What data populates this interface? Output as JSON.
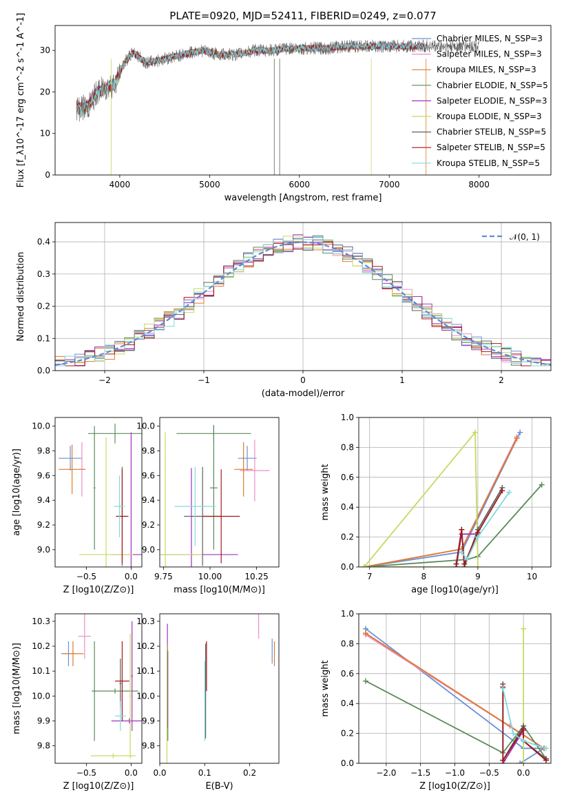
{
  "title": "PLATE=0920, MJD=52411, FIBERID=0249, z=0.077",
  "colors": {
    "chab_miles": "#6a8fd8",
    "salp_miles": "#e98fc6",
    "krou_miles": "#e07a2a",
    "chab_elodie": "#5a8a5a",
    "salp_elodie": "#a030c0",
    "krou_elodie": "#c8d860",
    "chab_stelib": "#606060",
    "salp_stelib": "#a01818",
    "krou_stelib": "#80d8e0"
  },
  "chart_data": [
    {
      "type": "line",
      "xlabel": "wavelength [Angstrom, rest frame]",
      "ylabel": "Flux [f_λ10^-17 erg cm^-2 s^-1 A^-1]",
      "xlim": [
        3280,
        8800
      ],
      "ylim": [
        0,
        36
      ],
      "xticks": [
        "4000",
        "5000",
        "6000",
        "7000",
        "8000"
      ],
      "yticks": [
        "0",
        "10",
        "20",
        "30"
      ],
      "x": [
        3550,
        3650,
        3750,
        3850,
        3950,
        4050,
        4150,
        4300,
        4500,
        4700,
        4900,
        5100,
        5300,
        5500,
        5700,
        5900,
        6100,
        6300,
        6500,
        6700,
        6900,
        7100,
        7300
      ],
      "series": [
        {
          "name": "Chabrier MILES, N_SSP=3",
          "color_key": "chab_miles",
          "values": [
            16,
            16.5,
            20,
            21,
            22,
            27,
            29.5,
            27,
            28,
            29,
            30,
            29,
            29,
            30,
            30,
            30.5,
            30.5,
            30.5,
            31,
            31,
            31,
            31,
            31
          ]
        },
        {
          "name": "Salpeter MILES, N_SSP=3",
          "color_key": "salp_miles",
          "values": [
            16,
            16.5,
            20,
            21,
            22,
            27,
            29.5,
            27,
            28,
            29,
            30,
            29,
            29,
            30,
            30,
            30.5,
            30.5,
            30.5,
            31,
            31,
            31,
            31,
            31
          ]
        },
        {
          "name": "Kroupa MILES, N_SSP=3",
          "color_key": "krou_miles",
          "values": [
            16,
            16.5,
            20,
            21,
            22,
            27,
            29.5,
            27,
            28,
            29,
            30,
            29,
            29,
            30,
            30,
            30.5,
            30.5,
            30.5,
            31,
            31,
            31,
            31,
            31
          ]
        },
        {
          "name": "Chabrier ELODIE, N_SSP=5",
          "color_key": "chab_elodie",
          "values": [
            16,
            16.5,
            20,
            21,
            22,
            27,
            29.5,
            27,
            28,
            29,
            30,
            29,
            29,
            30,
            30,
            30.5,
            30.5,
            30.5,
            31,
            31,
            31,
            31,
            31
          ]
        },
        {
          "name": "Salpeter ELODIE, N_SSP=3",
          "color_key": "salp_elodie",
          "values": [
            16,
            16.5,
            20,
            21,
            22,
            27,
            29.5,
            27,
            28,
            29,
            30,
            29,
            29,
            30,
            30,
            30.5,
            30.5,
            30.5,
            31,
            31,
            31,
            31,
            31
          ]
        },
        {
          "name": "Kroupa ELODIE, N_SSP=3",
          "color_key": "krou_elodie",
          "values": [
            16,
            16.5,
            20,
            21,
            22,
            27,
            29.5,
            27,
            28,
            29,
            30,
            29,
            29,
            30,
            30,
            30.5,
            30.5,
            30.5,
            31,
            31,
            31,
            31,
            31
          ]
        },
        {
          "name": "Chabrier STELIB, N_SSP=5",
          "color_key": "chab_stelib",
          "values": [
            16,
            16.5,
            20,
            21,
            22,
            27,
            29.5,
            27,
            28,
            29,
            30,
            29,
            29,
            30,
            30,
            30.5,
            30.5,
            30.5,
            31,
            31,
            31,
            31,
            31
          ]
        },
        {
          "name": "Salpeter STELIB, N_SSP=5",
          "color_key": "salp_stelib",
          "values": [
            16,
            16.5,
            20,
            21,
            22,
            27,
            29.5,
            27,
            28,
            29,
            30,
            29,
            29,
            30,
            30,
            30.5,
            30.5,
            30.5,
            31,
            31,
            31,
            31,
            31
          ]
        },
        {
          "name": "Kroupa STELIB, N_SSP=5",
          "color_key": "krou_stelib",
          "values": [
            16,
            16.5,
            20,
            21,
            22,
            27,
            29.5,
            27,
            28,
            29,
            30,
            29,
            29,
            30,
            30,
            30.5,
            30.5,
            30.5,
            31,
            31,
            31,
            31,
            31
          ]
        }
      ],
      "legend": "right"
    },
    {
      "type": "line",
      "xlabel": "(data-model)/error",
      "ylabel": "Normed distribution",
      "xlim": [
        -2.5,
        2.5
      ],
      "ylim": [
        0,
        0.46
      ],
      "xticks": [
        "−2",
        "−1",
        "0",
        "1",
        "2"
      ],
      "yticks": [
        "0.0",
        "0.1",
        "0.2",
        "0.3",
        "0.4"
      ],
      "grid": true,
      "reference": {
        "name": "𝒩(0, 1)",
        "dist": "normal",
        "mean": 0,
        "sigma": 1
      },
      "series_style": "step histograms, one per model",
      "legend": "top-right"
    },
    {
      "type": "scatter",
      "xlabel": "Z [log10(Z/Z⊙)]",
      "ylabel": "age  [log10(age/yr)]",
      "xlim": [
        -0.85,
        0.12
      ],
      "ylim": [
        8.86,
        10.07
      ],
      "xticks": [
        "−0.5",
        "0.0"
      ],
      "yticks": [
        "9.0",
        "9.2",
        "9.4",
        "9.6",
        "9.8",
        "10.0"
      ],
      "points": [
        {
          "color_key": "chab_miles",
          "x": -0.68,
          "y": 9.74,
          "ex": 0.13,
          "ey": 0.1
        },
        {
          "color_key": "salp_miles",
          "x": -0.55,
          "y": 9.65,
          "ex": 0.03,
          "ey": 0.22
        },
        {
          "color_key": "krou_miles",
          "x": -0.66,
          "y": 9.65,
          "ex": 0.15,
          "ey": 0.2
        },
        {
          "color_key": "chab_elodie",
          "x": -0.18,
          "y": 9.94,
          "ex": 0.3,
          "ey": 0.08
        },
        {
          "color_key": "chab_elodie",
          "x": -0.41,
          "y": 9.5,
          "ex": 0.01,
          "ey": 0.5
        },
        {
          "color_key": "salp_elodie",
          "x": 0.0,
          "y": 8.96,
          "ex": 0.2,
          "ey": 0.99
        },
        {
          "color_key": "krou_elodie",
          "x": -0.28,
          "y": 8.96,
          "ex": 0.3,
          "ey": 0.95
        },
        {
          "color_key": "chab_stelib",
          "x": -0.1,
          "y": 9.27,
          "ex": 0.04,
          "ey": 0.4
        },
        {
          "color_key": "salp_stelib",
          "x": -0.1,
          "y": 9.27,
          "ex": 0.07,
          "ey": 0.38
        },
        {
          "color_key": "krou_stelib",
          "x": -0.13,
          "y": 9.35,
          "ex": 0.06,
          "ey": 0.25
        }
      ]
    },
    {
      "type": "scatter",
      "xlabel": "mass [log10(M/M⊙)]",
      "ylabel": "",
      "xlim": [
        9.73,
        10.37
      ],
      "ylim": [
        8.86,
        10.07
      ],
      "xticks": [
        "9.75",
        "10.00",
        "10.25"
      ],
      "yticks": [
        "9.0",
        "9.2",
        "9.4",
        "9.6",
        "9.8",
        "10.0"
      ],
      "points": [
        {
          "color_key": "chab_miles",
          "x": 10.2,
          "y": 9.74,
          "ex": 0.05,
          "ey": 0.1
        },
        {
          "color_key": "salp_miles",
          "x": 10.24,
          "y": 9.64,
          "ex": 0.08,
          "ey": 0.25
        },
        {
          "color_key": "krou_miles",
          "x": 10.18,
          "y": 9.65,
          "ex": 0.05,
          "ey": 0.22
        },
        {
          "color_key": "chab_elodie",
          "x": 10.02,
          "y": 9.94,
          "ex": 0.2,
          "ey": 0.07
        },
        {
          "color_key": "chab_elodie",
          "x": 10.02,
          "y": 9.5,
          "ex": 0.02,
          "ey": 0.5
        },
        {
          "color_key": "salp_elodie",
          "x": 9.9,
          "y": 8.96,
          "ex": 0.25,
          "ey": 0.7
        },
        {
          "color_key": "krou_elodie",
          "x": 9.76,
          "y": 8.96,
          "ex": 0.2,
          "ey": 0.99
        },
        {
          "color_key": "chab_stelib",
          "x": 9.96,
          "y": 9.27,
          "ex": 0.1,
          "ey": 0.4
        },
        {
          "color_key": "salp_stelib",
          "x": 10.06,
          "y": 9.27,
          "ex": 0.1,
          "ey": 0.38
        },
        {
          "color_key": "krou_stelib",
          "x": 9.92,
          "y": 9.35,
          "ex": 0.11,
          "ey": 0.32
        }
      ]
    },
    {
      "type": "line",
      "xlabel": "age  [log10(age/yr)]",
      "ylabel": "mass weight",
      "xlim": [
        6.8,
        10.35
      ],
      "ylim": [
        0,
        1.0
      ],
      "xticks": [
        "7",
        "8",
        "9",
        "10"
      ],
      "yticks": [
        "0.0",
        "0.2",
        "0.4",
        "0.6",
        "0.8",
        "1.0"
      ],
      "grid": true,
      "series": [
        {
          "color_key": "chab_miles",
          "x": [
            6.9,
            8.7,
            9.78
          ],
          "y": [
            0.0,
            0.1,
            0.9
          ]
        },
        {
          "color_key": "salp_miles",
          "x": [
            6.9,
            8.7,
            9.72
          ],
          "y": [
            0.0,
            0.12,
            0.87
          ]
        },
        {
          "color_key": "krou_miles",
          "x": [
            6.9,
            8.7,
            9.72
          ],
          "y": [
            0.0,
            0.12,
            0.86
          ]
        },
        {
          "color_key": "chab_elodie",
          "x": [
            6.9,
            8.8,
            9.0,
            10.18
          ],
          "y": [
            0.0,
            0.05,
            0.07,
            0.55
          ]
        },
        {
          "color_key": "salp_elodie",
          "x": [
            8.6,
            8.7,
            9.0
          ],
          "y": [
            0.0,
            0.22,
            0.22
          ]
        },
        {
          "color_key": "krou_elodie",
          "x": [
            6.9,
            8.95,
            9.0,
            6.9
          ],
          "y": [
            0.0,
            0.9,
            0.0,
            0.0
          ]
        },
        {
          "color_key": "chab_stelib",
          "x": [
            8.6,
            8.7,
            8.75,
            9.0,
            9.45
          ],
          "y": [
            0.0,
            0.25,
            0.0,
            0.25,
            0.53
          ]
        },
        {
          "color_key": "salp_stelib",
          "x": [
            8.6,
            8.7,
            8.75,
            9.0,
            9.45
          ],
          "y": [
            0.02,
            0.25,
            0.02,
            0.23,
            0.51
          ]
        },
        {
          "color_key": "krou_stelib",
          "x": [
            8.7,
            8.8,
            9.0,
            9.58
          ],
          "y": [
            0.1,
            0.05,
            0.2,
            0.5
          ]
        }
      ]
    },
    {
      "type": "scatter",
      "xlabel": "Z [log10(Z/Z⊙)]",
      "ylabel": "mass [log10(M/M⊙)]",
      "xlim": [
        -0.85,
        0.12
      ],
      "ylim": [
        9.73,
        10.33
      ],
      "xticks": [
        "−0.5",
        "0.0"
      ],
      "yticks": [
        "9.8",
        "9.9",
        "10.0",
        "10.1",
        "10.2",
        "10.3"
      ],
      "points": [
        {
          "color_key": "chab_miles",
          "x": -0.7,
          "y": 10.17,
          "ex": 0.08,
          "ey": 0.05
        },
        {
          "color_key": "salp_miles",
          "x": -0.52,
          "y": 10.24,
          "ex": 0.07,
          "ey": 0.09
        },
        {
          "color_key": "krou_miles",
          "x": -0.65,
          "y": 10.17,
          "ex": 0.12,
          "ey": 0.05
        },
        {
          "color_key": "chab_elodie",
          "x": -0.41,
          "y": 10.02,
          "ex": 0.01,
          "ey": 0.2
        },
        {
          "color_key": "chab_elodie",
          "x": -0.18,
          "y": 10.02,
          "ex": 0.26,
          "ey": 0.01
        },
        {
          "color_key": "salp_elodie",
          "x": -0.02,
          "y": 9.9,
          "ex": 0.2,
          "ey": 0.01
        },
        {
          "color_key": "salp_elodie",
          "x": 0.01,
          "y": 10.08,
          "ex": 0.01,
          "ey": 0.22
        },
        {
          "color_key": "krou_elodie",
          "x": -0.2,
          "y": 9.76,
          "ex": 0.25,
          "ey": 0.01
        },
        {
          "color_key": "krou_elodie",
          "x": -0.01,
          "y": 10.0,
          "ex": 0.01,
          "ey": 0.25
        },
        {
          "color_key": "chab_stelib",
          "x": -0.12,
          "y": 10.05,
          "ex": 0.01,
          "ey": 0.1
        },
        {
          "color_key": "salp_stelib",
          "x": -0.1,
          "y": 10.06,
          "ex": 0.08,
          "ey": 0.16
        },
        {
          "color_key": "krou_stelib",
          "x": -0.12,
          "y": 9.92,
          "ex": 0.06,
          "ey": 0.06
        }
      ]
    },
    {
      "type": "scatter",
      "xlabel": "E(B-V)",
      "ylabel": "",
      "xlim": [
        0.0,
        0.265
      ],
      "ylim": [
        9.73,
        10.33
      ],
      "xticks": [
        "0.0",
        "0.1",
        "0.2"
      ],
      "yticks": [
        "9.8",
        "9.9",
        "10.0",
        "10.1",
        "10.2",
        "10.3"
      ],
      "points": [
        {
          "color_key": "chab_miles",
          "x": 0.25,
          "y": 10.18,
          "ex": 0.0,
          "ey": 0.05
        },
        {
          "color_key": "salp_miles",
          "x": 0.22,
          "y": 10.28,
          "ex": 0.0,
          "ey": 0.05
        },
        {
          "color_key": "krou_miles",
          "x": 0.255,
          "y": 10.17,
          "ex": 0.0,
          "ey": 0.05
        },
        {
          "color_key": "chab_elodie",
          "x": 0.018,
          "y": 10.0,
          "ex": 0.0,
          "ey": 0.18
        },
        {
          "color_key": "salp_elodie",
          "x": 0.017,
          "y": 10.08,
          "ex": 0.0,
          "ey": 0.21
        },
        {
          "color_key": "krou_elodie",
          "x": 0.016,
          "y": 9.96,
          "ex": 0.0,
          "ey": 0.25
        },
        {
          "color_key": "chab_stelib",
          "x": 0.102,
          "y": 10.02,
          "ex": 0.0,
          "ey": 0.19
        },
        {
          "color_key": "salp_stelib",
          "x": 0.104,
          "y": 10.12,
          "ex": 0.0,
          "ey": 0.1
        },
        {
          "color_key": "krou_stelib",
          "x": 0.1,
          "y": 9.98,
          "ex": 0.0,
          "ey": 0.16
        }
      ]
    },
    {
      "type": "line",
      "xlabel": "Z [log10(Z/Z⊙)]",
      "ylabel": "mass weight",
      "xlim": [
        -2.4,
        0.4
      ],
      "ylim": [
        0,
        1.0
      ],
      "xticks": [
        "−2.0",
        "−1.5",
        "−1.0",
        "−0.5",
        "0.0"
      ],
      "yticks": [
        "0.0",
        "0.2",
        "0.4",
        "0.6",
        "0.8",
        "1.0"
      ],
      "grid": true,
      "series": [
        {
          "color_key": "chab_miles",
          "x": [
            -2.3,
            0.0,
            0.3,
            -0.05
          ],
          "y": [
            0.9,
            0.1,
            0.1,
            0.0
          ]
        },
        {
          "color_key": "salp_miles",
          "x": [
            -2.3,
            0.3,
            -0.2
          ],
          "y": [
            0.86,
            0.1,
            0.25
          ]
        },
        {
          "color_key": "krou_miles",
          "x": [
            -2.3,
            0.3
          ],
          "y": [
            0.87,
            0.1
          ]
        },
        {
          "color_key": "chab_elodie",
          "x": [
            -2.3,
            -0.3,
            0.0,
            0.33
          ],
          "y": [
            0.55,
            0.07,
            0.25,
            0.03
          ]
        },
        {
          "color_key": "salp_elodie",
          "x": [
            -0.3,
            0.0,
            0.0
          ],
          "y": [
            0.0,
            0.22,
            0.22
          ]
        },
        {
          "color_key": "krou_elodie",
          "x": [
            0.0,
            0.0,
            0.0
          ],
          "y": [
            0.0,
            0.9,
            0.0
          ]
        },
        {
          "color_key": "chab_stelib",
          "x": [
            -0.3,
            -0.3,
            0.0,
            0.0,
            0.33
          ],
          "y": [
            0.53,
            0.02,
            0.25,
            0.15,
            0.03
          ]
        },
        {
          "color_key": "salp_stelib",
          "x": [
            -0.3,
            -0.3,
            0.0,
            0.0,
            0.33
          ],
          "y": [
            0.51,
            0.02,
            0.23,
            0.15,
            0.02
          ]
        },
        {
          "color_key": "krou_stelib",
          "x": [
            -0.3,
            -0.15,
            0.0,
            0.33
          ],
          "y": [
            0.5,
            0.2,
            0.15,
            0.1
          ]
        }
      ]
    }
  ]
}
